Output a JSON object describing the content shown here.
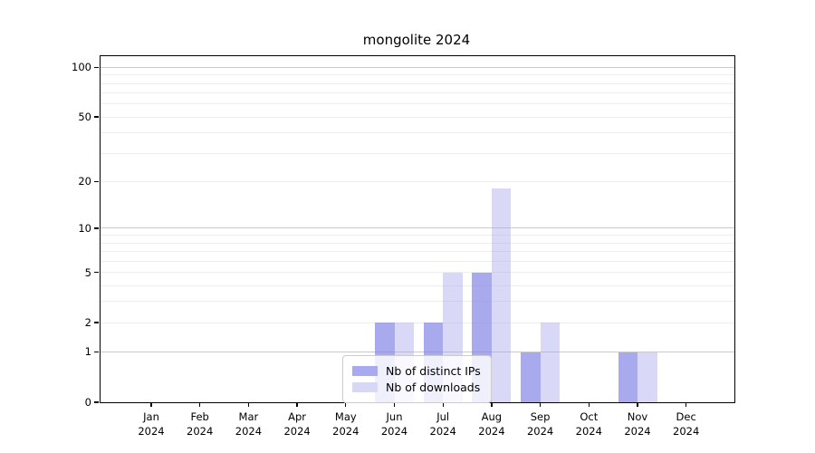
{
  "title": "mongolite 2024",
  "chart_data": {
    "type": "bar",
    "title": "mongolite 2024",
    "xlabel": "",
    "ylabel": "",
    "categories": [
      "Jan 2024",
      "Feb 2024",
      "Mar 2024",
      "Apr 2024",
      "May 2024",
      "Jun 2024",
      "Jul 2024",
      "Aug 2024",
      "Sep 2024",
      "Oct 2024",
      "Nov 2024",
      "Dec 2024"
    ],
    "series": [
      {
        "name": "Nb of distinct IPs",
        "color": "#a9a9ef",
        "fill": "rgba(136,136,232,0.72)",
        "values": [
          0,
          0,
          0,
          0,
          0,
          2,
          2,
          5,
          1,
          0,
          1,
          0
        ]
      },
      {
        "name": "Nb of downloads",
        "color": "#d8d8f6",
        "fill": "rgba(170,170,238,0.45)",
        "values": [
          0,
          0,
          0,
          0,
          0,
          2,
          5,
          18,
          2,
          0,
          1,
          0
        ]
      }
    ],
    "yscale": "log1p",
    "ylim": [
      0,
      117
    ],
    "yticks": [
      0,
      1,
      2,
      5,
      10,
      20,
      50,
      100
    ],
    "major_gridlines": [
      1,
      10,
      100
    ],
    "minor_gridlines": [
      2,
      3,
      4,
      5,
      6,
      7,
      8,
      9,
      20,
      30,
      40,
      50,
      60,
      70,
      80,
      90
    ],
    "grid": true,
    "legend_position": "lower center-left",
    "colors": {
      "major_grid": "#c9c9c9",
      "minor_grid": "#ededed",
      "axis": "#000000"
    }
  }
}
